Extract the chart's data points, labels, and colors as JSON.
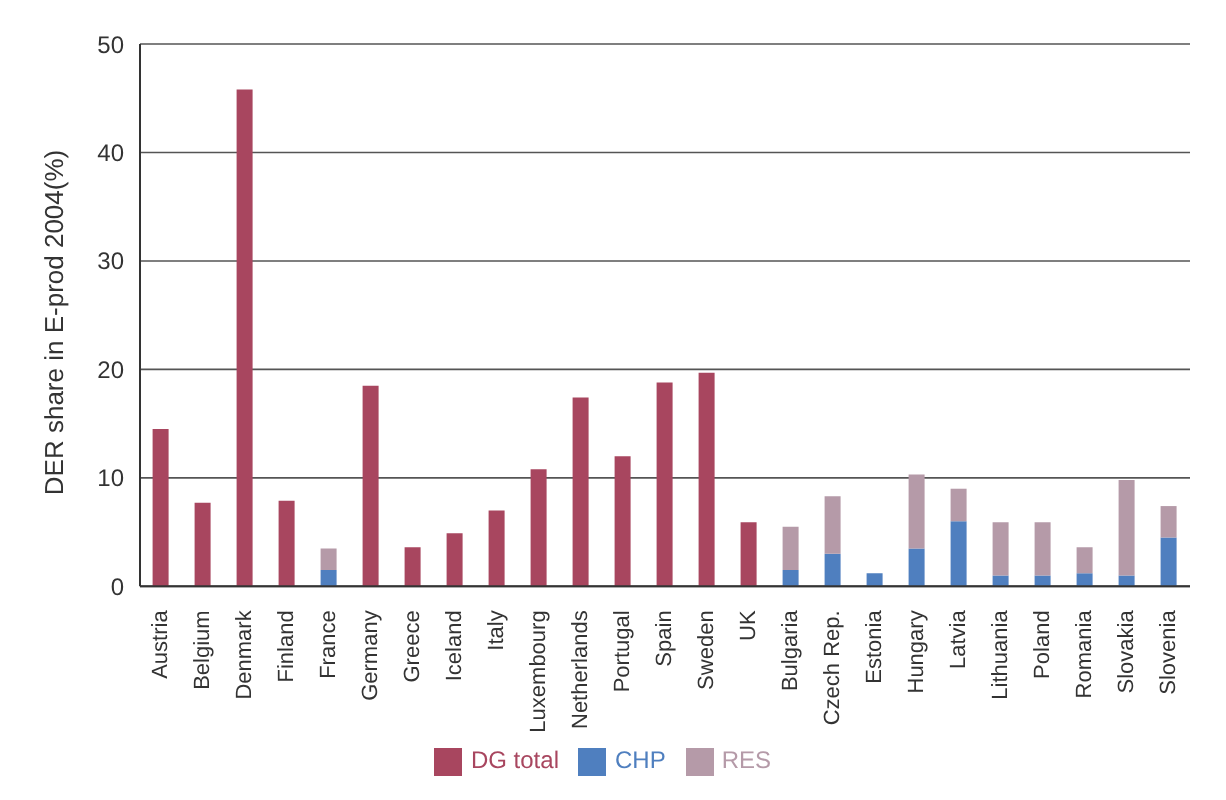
{
  "chart_data": {
    "type": "bar",
    "stacked": true,
    "ylabel": "DER share in E-prod 2004(%)",
    "categories": [
      "Austria",
      "Belgium",
      "Denmark",
      "Finland",
      "France",
      "Germany",
      "Greece",
      "Iceland",
      "Italy",
      "Luxembourg",
      "Netherlands",
      "Portugal",
      "Spain",
      "Sweden",
      "UK",
      "Bulgaria",
      "Czech Rep.",
      "Estonia",
      "Hungary",
      "Latvia",
      "Lithuania",
      "Poland",
      "Romania",
      "Slovakia",
      "Slovenia"
    ],
    "series": [
      {
        "name": "DG total",
        "color": "#a8465f",
        "values": [
          14.5,
          7.7,
          45.8,
          7.9,
          null,
          18.5,
          3.6,
          4.9,
          7.0,
          10.8,
          17.4,
          12.0,
          18.8,
          19.7,
          5.9,
          null,
          null,
          null,
          null,
          null,
          null,
          null,
          null,
          null,
          null
        ]
      },
      {
        "name": "CHP",
        "color": "#4f7fbf",
        "values": [
          null,
          null,
          null,
          null,
          1.5,
          null,
          null,
          null,
          null,
          null,
          null,
          null,
          null,
          null,
          null,
          1.5,
          3.0,
          1.2,
          3.5,
          6.0,
          1.0,
          1.0,
          1.2,
          1.0,
          4.5
        ]
      },
      {
        "name": "RES",
        "color": "#b59aa8",
        "values": [
          null,
          null,
          null,
          null,
          2.0,
          null,
          null,
          null,
          null,
          null,
          null,
          null,
          null,
          null,
          null,
          4.0,
          5.3,
          null,
          6.8,
          3.0,
          4.9,
          4.9,
          2.4,
          8.8,
          2.9
        ]
      }
    ],
    "ylim": [
      0,
      50
    ],
    "yticks": [
      0,
      10,
      20,
      30,
      40,
      50
    ],
    "grid": "y",
    "legend": "bottom"
  }
}
